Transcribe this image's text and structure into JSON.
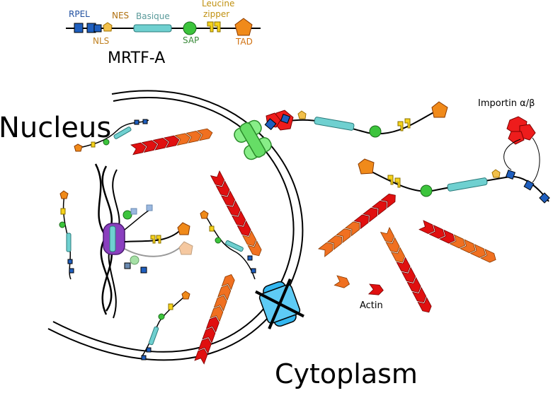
{
  "legend": {
    "title": "MRTF-A",
    "rpel": "RPEL",
    "nls": "NLS",
    "nes": "NES",
    "basic": "Basique",
    "sap": "SAP",
    "leucine_1": "Leucine",
    "leucine_2": "zipper",
    "tad": "TAD"
  },
  "labels": {
    "nucleus": "Nucleus",
    "cytoplasm": "Cytoplasm",
    "importin": "Importin α/β",
    "actin": "Actin"
  },
  "colors": {
    "rpel": "#1f5fbf",
    "nls": "#e07b1a",
    "nes": "#f2c04a",
    "basic": "#6fd0d0",
    "sap": "#3cc43c",
    "leucine": "#f5d21a",
    "tad": "#f08a1a",
    "actin_red": "#e01010",
    "actin_orange": "#f07020",
    "importin": "#ee1c1c",
    "pore": "#66dd66",
    "blocked_pore": "#33b7f0",
    "dna_complex": "#8a3fbf"
  }
}
